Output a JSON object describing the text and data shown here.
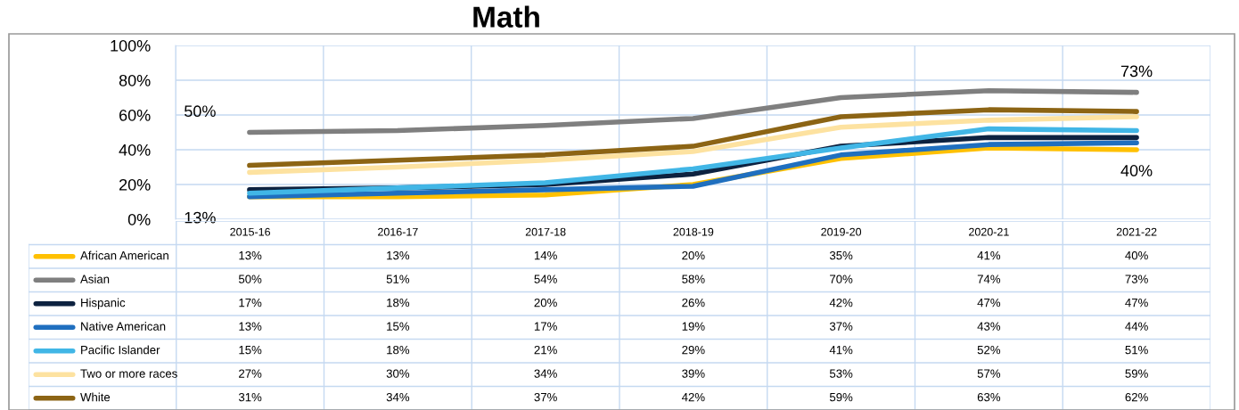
{
  "chart_data": {
    "type": "line",
    "title": "Math",
    "categories": [
      "2015-16",
      "2016-17",
      "2017-18",
      "2018-19",
      "2019-20",
      "2020-21",
      "2021-22"
    ],
    "ylim": [
      0,
      100
    ],
    "yticks": [
      {
        "value": 0,
        "label": "0%"
      },
      {
        "value": 20,
        "label": "20%"
      },
      {
        "value": 40,
        "label": "40%"
      },
      {
        "value": 60,
        "label": "60%"
      },
      {
        "value": 80,
        "label": "80%"
      },
      {
        "value": 100,
        "label": "100%"
      }
    ],
    "grid": "y",
    "legend": "bottom",
    "marker": "none",
    "line_style": "solid",
    "series": [
      {
        "name": "African American",
        "color": "#ffc000",
        "values": [
          13,
          13,
          14,
          20,
          35,
          41,
          40
        ],
        "value_labels": [
          "13%",
          "13%",
          "14%",
          "20%",
          "35%",
          "41%",
          "40%"
        ]
      },
      {
        "name": "Asian",
        "color": "#7f7f7f",
        "values": [
          50,
          51,
          54,
          58,
          70,
          74,
          73
        ],
        "value_labels": [
          "50%",
          "51%",
          "54%",
          "58%",
          "70%",
          "74%",
          "73%"
        ]
      },
      {
        "name": "Hispanic",
        "color": "#0d2240",
        "values": [
          17,
          18,
          20,
          26,
          42,
          47,
          47
        ],
        "value_labels": [
          "17%",
          "18%",
          "20%",
          "26%",
          "42%",
          "47%",
          "47%"
        ]
      },
      {
        "name": "Native American",
        "color": "#1f6fbf",
        "values": [
          13,
          15,
          17,
          19,
          37,
          43,
          44
        ],
        "value_labels": [
          "13%",
          "15%",
          "17%",
          "19%",
          "37%",
          "43%",
          "44%"
        ]
      },
      {
        "name": "Pacific Islander",
        "color": "#41b6e6",
        "values": [
          15,
          18,
          21,
          29,
          41,
          52,
          51
        ],
        "value_labels": [
          "15%",
          "18%",
          "21%",
          "29%",
          "41%",
          "52%",
          "51%"
        ]
      },
      {
        "name": "Two or more races",
        "color": "#fde2a0",
        "values": [
          27,
          30,
          34,
          39,
          53,
          57,
          59
        ],
        "value_labels": [
          "27%",
          "30%",
          "34%",
          "39%",
          "53%",
          "57%",
          "59%"
        ]
      },
      {
        "name": "White",
        "color": "#8c6414",
        "values": [
          31,
          34,
          37,
          42,
          59,
          63,
          62
        ],
        "value_labels": [
          "31%",
          "34%",
          "37%",
          "42%",
          "59%",
          "63%",
          "62%"
        ]
      }
    ],
    "annotations": [
      {
        "text": "50%",
        "x": "2015-16",
        "y": 50
      },
      {
        "text": "13%",
        "x": "2015-16",
        "y": 13
      },
      {
        "text": "73%",
        "x": "2021-22",
        "y": 73
      },
      {
        "text": "40%",
        "x": "2021-22",
        "y": 40
      }
    ]
  }
}
